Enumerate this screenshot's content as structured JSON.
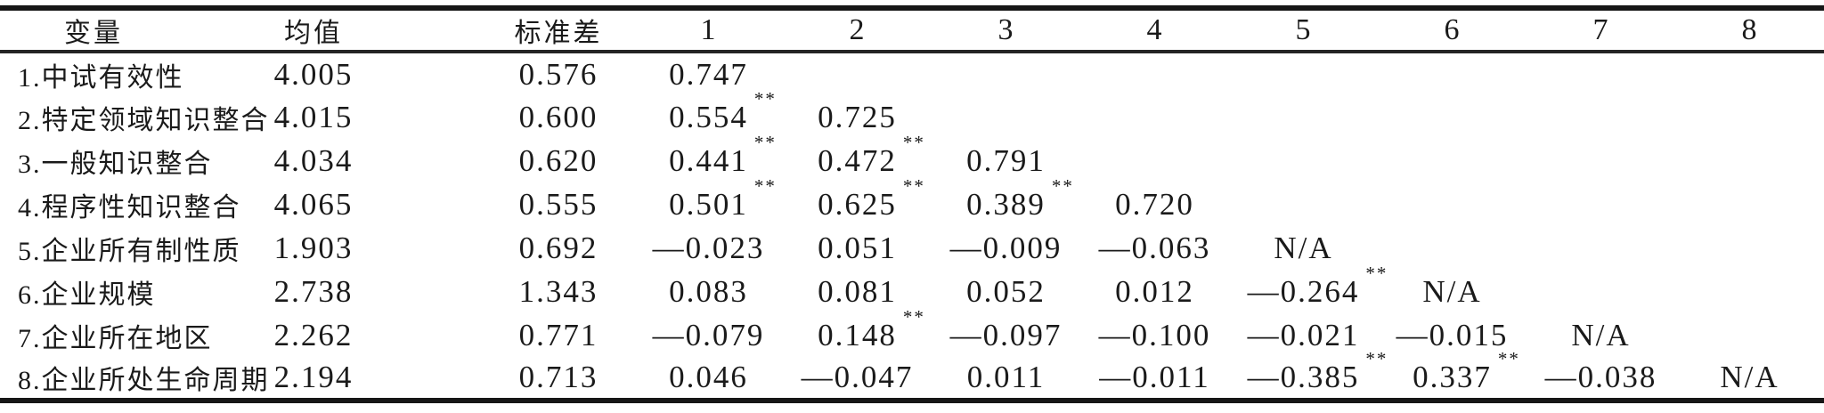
{
  "colors": {
    "ink": "#1a1a1a",
    "rule": "#161616",
    "background": "#ffffff"
  },
  "table": {
    "columns": [
      "变量",
      "均值",
      "标准差",
      "1",
      "2",
      "3",
      "4",
      "5",
      "6",
      "7",
      "8"
    ],
    "significance_marker": "**",
    "rows": [
      {
        "label": "1.中试有效性",
        "mean": "4.005",
        "sd": "0.576",
        "corr": [
          {
            "v": "0.747"
          },
          {
            "v": ""
          },
          {
            "v": ""
          },
          {
            "v": ""
          },
          {
            "v": ""
          },
          {
            "v": ""
          },
          {
            "v": ""
          },
          {
            "v": ""
          }
        ]
      },
      {
        "label": "2.特定领域知识整合",
        "mean": "4.015",
        "sd": "0.600",
        "corr": [
          {
            "v": "0.554",
            "sig": "**"
          },
          {
            "v": "0.725"
          },
          {
            "v": ""
          },
          {
            "v": ""
          },
          {
            "v": ""
          },
          {
            "v": ""
          },
          {
            "v": ""
          },
          {
            "v": ""
          }
        ]
      },
      {
        "label": "3.一般知识整合",
        "mean": "4.034",
        "sd": "0.620",
        "corr": [
          {
            "v": "0.441",
            "sig": "**"
          },
          {
            "v": "0.472",
            "sig": "**"
          },
          {
            "v": "0.791"
          },
          {
            "v": ""
          },
          {
            "v": ""
          },
          {
            "v": ""
          },
          {
            "v": ""
          },
          {
            "v": ""
          }
        ]
      },
      {
        "label": "4.程序性知识整合",
        "mean": "4.065",
        "sd": "0.555",
        "corr": [
          {
            "v": "0.501",
            "sig": "**"
          },
          {
            "v": "0.625",
            "sig": "**"
          },
          {
            "v": "0.389",
            "sig": "**"
          },
          {
            "v": "0.720"
          },
          {
            "v": ""
          },
          {
            "v": ""
          },
          {
            "v": ""
          },
          {
            "v": ""
          }
        ]
      },
      {
        "label": "5.企业所有制性质",
        "mean": "1.903",
        "sd": "0.692",
        "corr": [
          {
            "v": "—0.023"
          },
          {
            "v": "0.051"
          },
          {
            "v": "—0.009"
          },
          {
            "v": "—0.063"
          },
          {
            "v": "N/A"
          },
          {
            "v": ""
          },
          {
            "v": ""
          },
          {
            "v": ""
          }
        ]
      },
      {
        "label": "6.企业规模",
        "mean": "2.738",
        "sd": "1.343",
        "corr": [
          {
            "v": "0.083"
          },
          {
            "v": "0.081"
          },
          {
            "v": "0.052"
          },
          {
            "v": "0.012"
          },
          {
            "v": "—0.264",
            "sig": "**"
          },
          {
            "v": "N/A"
          },
          {
            "v": ""
          },
          {
            "v": ""
          }
        ]
      },
      {
        "label": "7.企业所在地区",
        "mean": "2.262",
        "sd": "0.771",
        "corr": [
          {
            "v": "—0.079"
          },
          {
            "v": "0.148",
            "sig": "**"
          },
          {
            "v": "—0.097"
          },
          {
            "v": "—0.100"
          },
          {
            "v": "—0.021"
          },
          {
            "v": "—0.015"
          },
          {
            "v": "N/A"
          },
          {
            "v": ""
          }
        ]
      },
      {
        "label": "8.企业所处生命周期",
        "mean": "2.194",
        "sd": "0.713",
        "corr": [
          {
            "v": "0.046"
          },
          {
            "v": "—0.047"
          },
          {
            "v": "0.011"
          },
          {
            "v": "—0.011"
          },
          {
            "v": "—0.385",
            "sig": "**"
          },
          {
            "v": "0.337",
            "sig": "**"
          },
          {
            "v": "—0.038"
          },
          {
            "v": "N/A"
          }
        ]
      }
    ]
  }
}
